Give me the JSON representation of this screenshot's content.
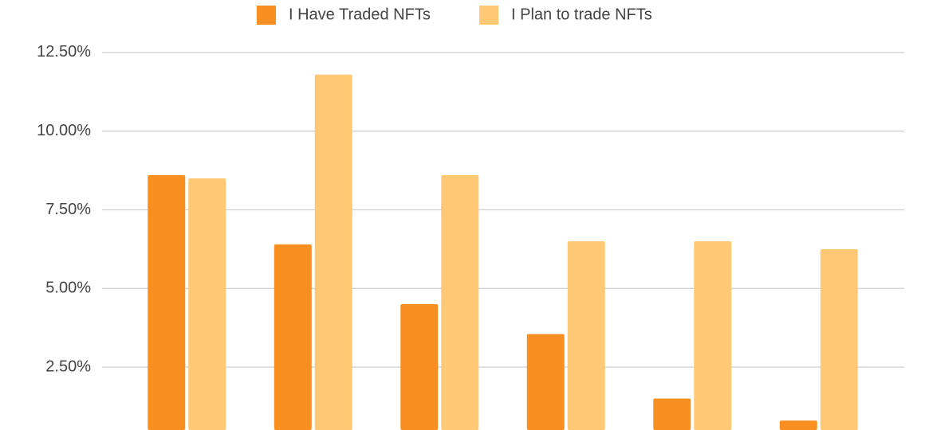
{
  "chart_data": {
    "type": "bar",
    "categories": [
      null,
      null,
      null,
      null,
      null,
      null
    ],
    "series": [
      {
        "name": "I Have Traded NFTs",
        "color": "#f98f20",
        "values": [
          8.6,
          6.4,
          4.5,
          3.55,
          1.5,
          0.8
        ]
      },
      {
        "name": "I Plan to trade NFTs",
        "color": "#fec874",
        "values": [
          8.5,
          11.8,
          8.6,
          6.5,
          6.5,
          6.25
        ]
      }
    ],
    "ylim": [
      0.5,
      13
    ],
    "yticks": [
      {
        "value": 2.5,
        "label": "2.50%"
      },
      {
        "value": 5,
        "label": "5.00%"
      },
      {
        "value": 7.5,
        "label": "7.50%"
      },
      {
        "value": 10,
        "label": "10.00%"
      },
      {
        "value": 12.5,
        "label": "12.50%"
      }
    ],
    "grid": true,
    "legend": "top"
  }
}
